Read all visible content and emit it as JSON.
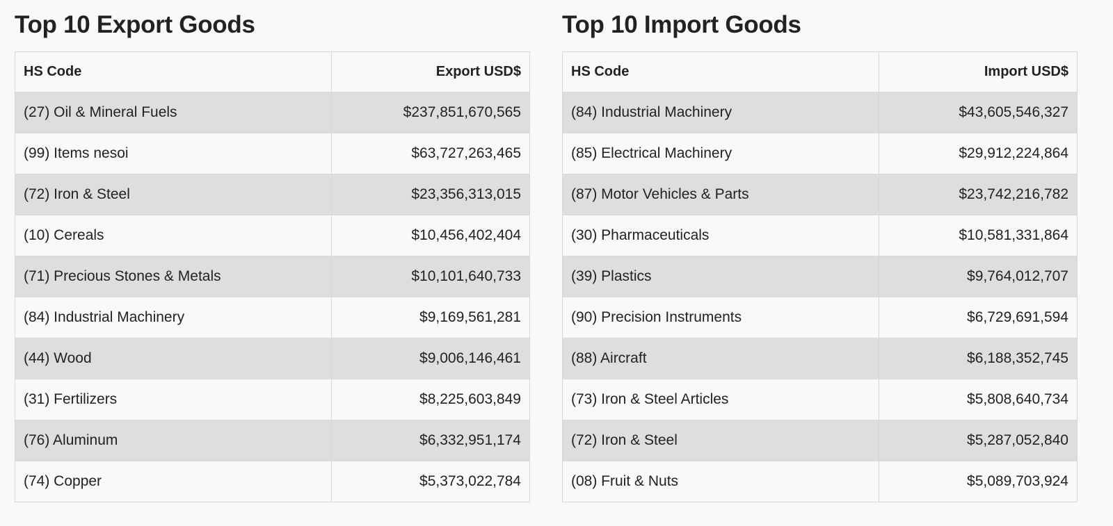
{
  "exports": {
    "title": "Top 10 Export Goods",
    "headers": [
      "HS Code",
      "Export USD$"
    ],
    "rows": [
      {
        "code": "(27) Oil & Mineral Fuels",
        "value": "$237,851,670,565"
      },
      {
        "code": "(99) Items nesoi",
        "value": "$63,727,263,465"
      },
      {
        "code": "(72) Iron & Steel",
        "value": "$23,356,313,015"
      },
      {
        "code": "(10) Cereals",
        "value": "$10,456,402,404"
      },
      {
        "code": "(71) Precious Stones & Metals",
        "value": "$10,101,640,733"
      },
      {
        "code": "(84) Industrial Machinery",
        "value": "$9,169,561,281"
      },
      {
        "code": "(44) Wood",
        "value": "$9,006,146,461"
      },
      {
        "code": "(31) Fertilizers",
        "value": "$8,225,603,849"
      },
      {
        "code": "(76) Aluminum",
        "value": "$6,332,951,174"
      },
      {
        "code": "(74) Copper",
        "value": "$5,373,022,784"
      }
    ]
  },
  "imports": {
    "title": "Top 10 Import Goods",
    "headers": [
      "HS Code",
      "Import USD$"
    ],
    "rows": [
      {
        "code": "(84) Industrial Machinery",
        "value": "$43,605,546,327"
      },
      {
        "code": "(85) Electrical Machinery",
        "value": "$29,912,224,864"
      },
      {
        "code": "(87) Motor Vehicles & Parts",
        "value": "$23,742,216,782"
      },
      {
        "code": "(30) Pharmaceuticals",
        "value": "$10,581,331,864"
      },
      {
        "code": "(39) Plastics",
        "value": "$9,764,012,707"
      },
      {
        "code": "(90) Precision Instruments",
        "value": "$6,729,691,594"
      },
      {
        "code": "(88) Aircraft",
        "value": "$6,188,352,745"
      },
      {
        "code": "(73) Iron & Steel Articles",
        "value": "$5,808,640,734"
      },
      {
        "code": "(72) Iron & Steel",
        "value": "$5,287,052,840"
      },
      {
        "code": "(08) Fruit & Nuts",
        "value": "$5,089,703,924"
      }
    ]
  },
  "colors": {
    "background": "#f8f9fb",
    "stripe": "#dedede",
    "border": "#d5d8dc",
    "text": "#222222"
  }
}
